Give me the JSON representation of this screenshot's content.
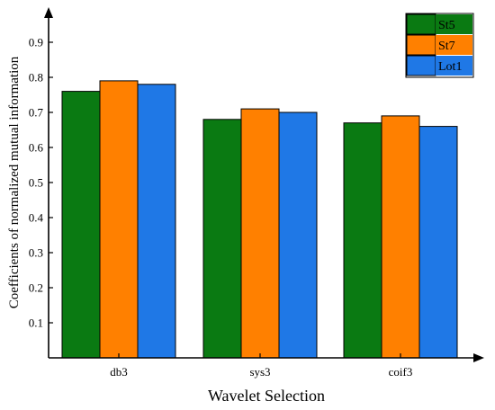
{
  "chart_data": {
    "type": "bar",
    "title": "",
    "xlabel": "Wavelet Selection",
    "ylabel": "Coefficients of normalized mutual information",
    "categories": [
      "db3",
      "sys3",
      "coif3"
    ],
    "series": [
      {
        "name": "St5",
        "values": [
          0.76,
          0.68,
          0.67
        ],
        "color": "#0a7a12"
      },
      {
        "name": "St7",
        "values": [
          0.79,
          0.71,
          0.69
        ],
        "color": "#ff8000"
      },
      {
        "name": "Lot1",
        "values": [
          0.78,
          0.7,
          0.66
        ],
        "color": "#1f78e6"
      }
    ],
    "ylim": [
      0,
      1.0
    ],
    "yticks": [
      "0.1",
      "0.2",
      "0.3",
      "0.4",
      "0.5",
      "0.6",
      "0.7",
      "0.8",
      "0.9"
    ],
    "grid": false,
    "legend_position": "top-right"
  }
}
